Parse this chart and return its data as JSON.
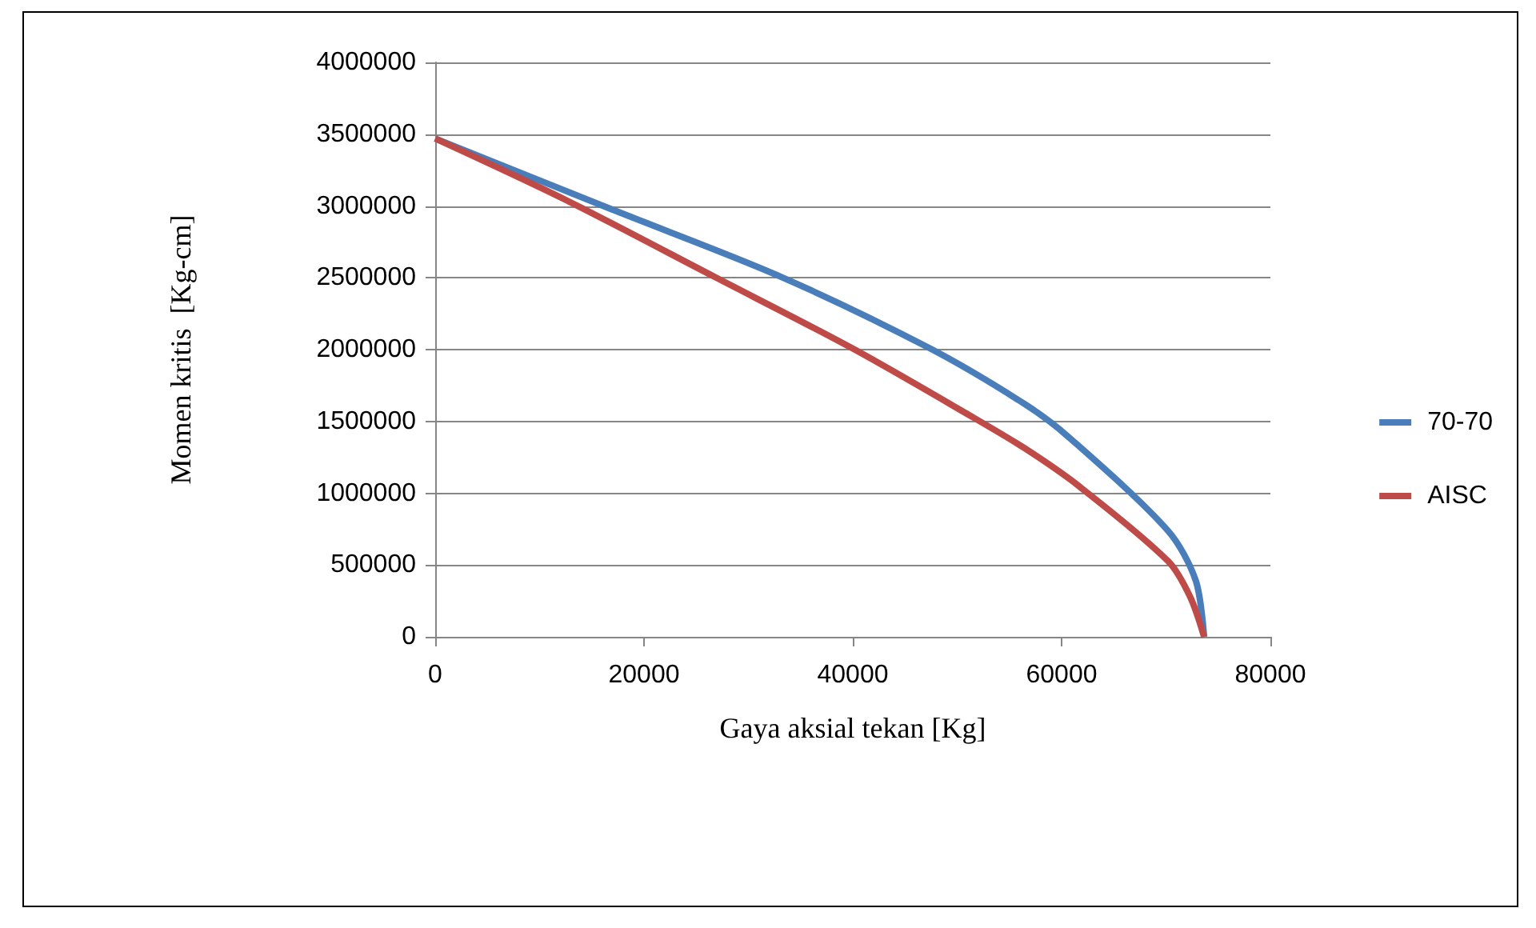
{
  "chart_data": {
    "type": "line",
    "xlabel": "Gaya aksial tekan [Kg]",
    "ylabel": "Momen kritis  [Kg-cm]",
    "xlim": [
      0,
      80000
    ],
    "xticks": [
      0,
      20000,
      40000,
      60000,
      80000
    ],
    "ylim": [
      0,
      4000000
    ],
    "yticks": [
      0,
      500000,
      1000000,
      1500000,
      2000000,
      2500000,
      3000000,
      3500000,
      4000000
    ],
    "grid": "y",
    "legend": "right",
    "marker": "none",
    "line_style": "solid",
    "series": [
      {
        "name": "70-70",
        "color": "#4a7ebb",
        "x": [
          0,
          17180,
          33090,
          47400,
          56420,
          60660,
          70200,
          72850,
          73650
        ],
        "values": [
          3470000,
          2969000,
          2508000,
          2008000,
          1623000,
          1392000,
          738000,
          392000,
          0
        ]
      },
      {
        "name": "AISC",
        "color": "#be4b48",
        "x": [
          0,
          12400,
          26720,
          39980,
          51100,
          56420,
          61720,
          70200,
          72320,
          73650
        ],
        "values": [
          3470000,
          3046000,
          2508000,
          2008000,
          1546000,
          1315000,
          1046000,
          527000,
          277000,
          0
        ]
      }
    ]
  }
}
